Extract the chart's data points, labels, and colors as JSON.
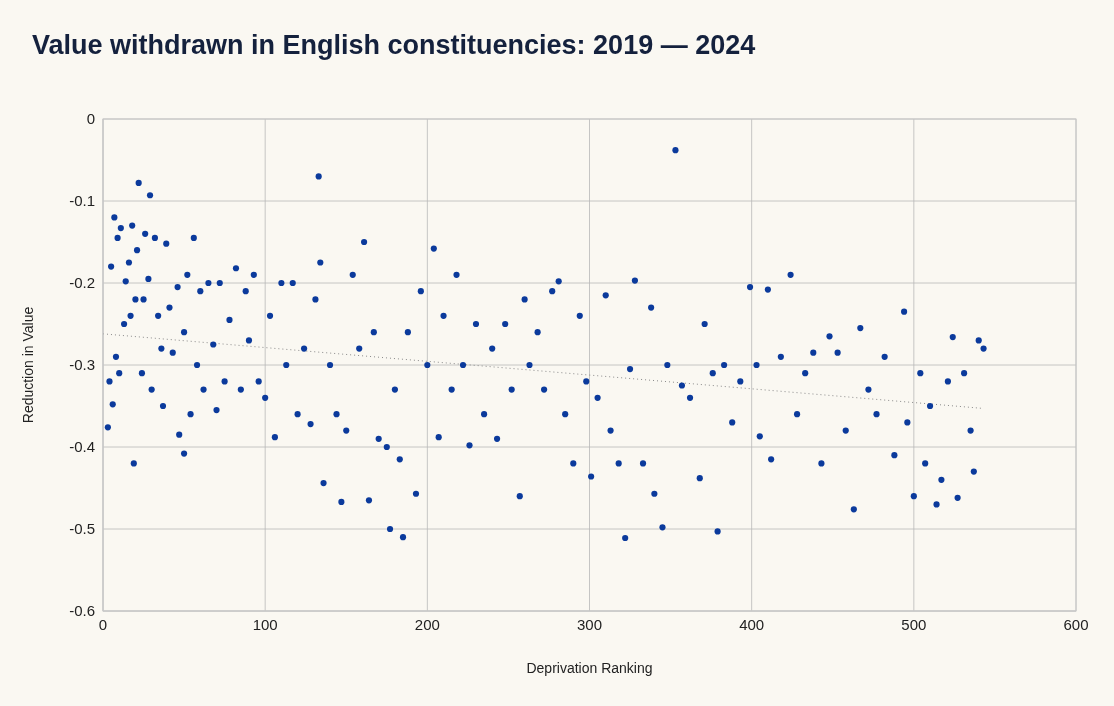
{
  "chart_data": {
    "type": "scatter",
    "title": "Value withdrawn in English constituencies: 2019 — 2024",
    "xlabel": "Deprivation Ranking",
    "ylabel": "Reduction in Value",
    "xlim": [
      0,
      600
    ],
    "xticks": [
      0,
      100,
      200,
      300,
      400,
      500,
      600
    ],
    "ylim": [
      -0.6,
      0
    ],
    "yticks": [
      -0.6,
      -0.5,
      -0.4,
      -0.3,
      -0.2,
      -0.1,
      0
    ],
    "grid": true,
    "legend": false,
    "marker": "circle",
    "series": [
      {
        "color": "#0b3a9c",
        "x": [
          3,
          4,
          5,
          6,
          7,
          8,
          9,
          10,
          11,
          13,
          14,
          16,
          17,
          18,
          19,
          20,
          21,
          22,
          24,
          25,
          26,
          28,
          29,
          30,
          32,
          34,
          36,
          37,
          39,
          41,
          43,
          46,
          47,
          50,
          50,
          52,
          54,
          56,
          58,
          60,
          62,
          65,
          68,
          70,
          72,
          75,
          78,
          82,
          85,
          88,
          90,
          93,
          96,
          100,
          103,
          106,
          110,
          113,
          117,
          120,
          124,
          128,
          131,
          133,
          134,
          136,
          140,
          144,
          147,
          150,
          154,
          158,
          161,
          164,
          167,
          170,
          175,
          177,
          180,
          183,
          185,
          188,
          193,
          196,
          200,
          204,
          207,
          210,
          215,
          218,
          222,
          226,
          230,
          235,
          240,
          243,
          248,
          252,
          257,
          260,
          263,
          268,
          272,
          277,
          281,
          285,
          290,
          294,
          298,
          301,
          305,
          310,
          313,
          318,
          322,
          325,
          328,
          333,
          338,
          340,
          345,
          348,
          353,
          357,
          362,
          368,
          371,
          376,
          379,
          383,
          388,
          393,
          399,
          403,
          405,
          410,
          412,
          418,
          424,
          428,
          433,
          438,
          443,
          448,
          453,
          458,
          463,
          467,
          472,
          477,
          482,
          488,
          494,
          496,
          500,
          504,
          507,
          510,
          514,
          517,
          521,
          524,
          527,
          531,
          535,
          537,
          540,
          543
        ],
        "values": [
          -0.376,
          -0.32,
          -0.18,
          -0.348,
          -0.12,
          -0.29,
          -0.145,
          -0.31,
          -0.133,
          -0.25,
          -0.198,
          -0.175,
          -0.24,
          -0.13,
          -0.42,
          -0.22,
          -0.16,
          -0.078,
          -0.31,
          -0.22,
          -0.14,
          -0.195,
          -0.093,
          -0.33,
          -0.145,
          -0.24,
          -0.28,
          -0.35,
          -0.152,
          -0.23,
          -0.285,
          -0.205,
          -0.385,
          -0.26,
          -0.408,
          -0.19,
          -0.36,
          -0.145,
          -0.3,
          -0.21,
          -0.33,
          -0.2,
          -0.275,
          -0.355,
          -0.2,
          -0.32,
          -0.245,
          -0.182,
          -0.33,
          -0.21,
          -0.27,
          -0.19,
          -0.32,
          -0.34,
          -0.24,
          -0.388,
          -0.2,
          -0.3,
          -0.2,
          -0.36,
          -0.28,
          -0.372,
          -0.22,
          -0.07,
          -0.175,
          -0.444,
          -0.3,
          -0.36,
          -0.467,
          -0.38,
          -0.19,
          -0.28,
          -0.15,
          -0.465,
          -0.26,
          -0.39,
          -0.4,
          -0.5,
          -0.33,
          -0.415,
          -0.51,
          -0.26,
          -0.457,
          -0.21,
          -0.3,
          -0.158,
          -0.388,
          -0.24,
          -0.33,
          -0.19,
          -0.3,
          -0.398,
          -0.25,
          -0.36,
          -0.28,
          -0.39,
          -0.25,
          -0.33,
          -0.46,
          -0.22,
          -0.3,
          -0.26,
          -0.33,
          -0.21,
          -0.198,
          -0.36,
          -0.42,
          -0.24,
          -0.32,
          -0.436,
          -0.34,
          -0.215,
          -0.38,
          -0.42,
          -0.511,
          -0.305,
          -0.197,
          -0.42,
          -0.23,
          -0.457,
          -0.498,
          -0.3,
          -0.038,
          -0.325,
          -0.34,
          -0.438,
          -0.25,
          -0.31,
          -0.503,
          -0.3,
          -0.37,
          -0.32,
          -0.205,
          -0.3,
          -0.387,
          -0.208,
          -0.415,
          -0.29,
          -0.19,
          -0.36,
          -0.31,
          -0.285,
          -0.42,
          -0.265,
          -0.285,
          -0.38,
          -0.476,
          -0.255,
          -0.33,
          -0.36,
          -0.29,
          -0.41,
          -0.235,
          -0.37,
          -0.46,
          -0.31,
          -0.42,
          -0.35,
          -0.47,
          -0.44,
          -0.32,
          -0.266,
          -0.462,
          -0.31,
          -0.38,
          -0.43,
          -0.27,
          -0.28
        ]
      },
      {
        "type": "line",
        "color": "#8a8a8a",
        "line_style": "dotted",
        "marker": "none",
        "x": [
          0,
          543
        ],
        "values": [
          -0.262,
          -0.353
        ]
      }
    ]
  }
}
